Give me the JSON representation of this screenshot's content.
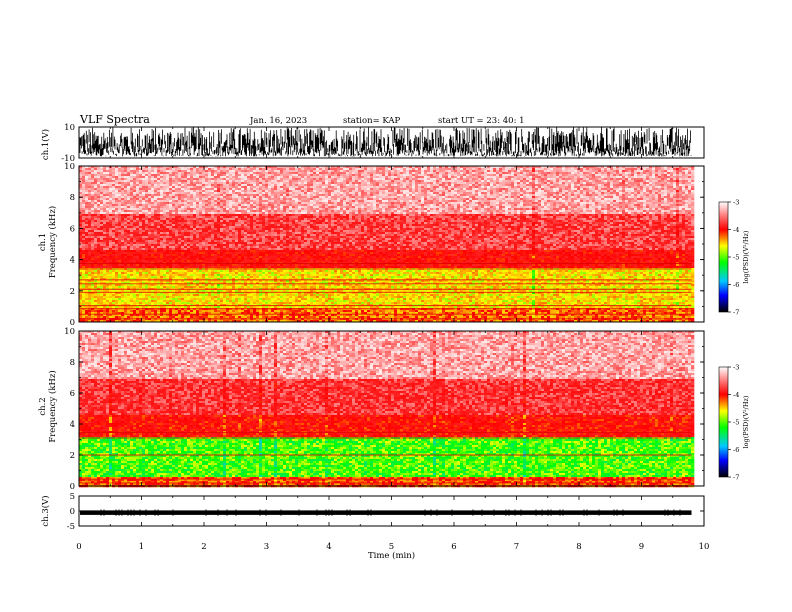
{
  "header": {
    "title": "VLF Spectra",
    "date": "Jan. 16, 2023",
    "station": "station= KAP",
    "start_ut": "start  UT =   23: 40: 1"
  },
  "chart_data": [
    {
      "panel": "ch1-waveform",
      "type": "line",
      "ylabel": "ch.1(V)",
      "ylim": [
        -10,
        10
      ],
      "yticks": [
        10,
        -10
      ],
      "xlim": [
        0,
        10
      ],
      "data_end_min": 9.8,
      "description_of_values": "dense oscillating voltage trace spanning roughly -9 to +10 V",
      "approx_range": [
        -9,
        10
      ]
    },
    {
      "panel": "ch1-spectrogram",
      "type": "heatmap",
      "ylabel": "ch.1\nFrequency (kHz)",
      "ylabel_lines": [
        "ch.1",
        "Frequency (kHz)"
      ],
      "ylim": [
        0,
        10
      ],
      "yticks": [
        0,
        2,
        4,
        6,
        8,
        10
      ],
      "xlim": [
        0,
        10
      ],
      "data_end_min": 9.8,
      "colorbar": {
        "label": "log(PSD)(V²/Hz)",
        "range": [
          -7,
          -3
        ],
        "ticks": [
          -3,
          -4,
          -5,
          -6,
          -7
        ]
      },
      "bands": [
        {
          "f_from": 0,
          "f_to": 0.9,
          "log_psd": -4.4
        },
        {
          "f_from": 0.9,
          "f_to": 3.5,
          "log_psd": -4.7
        },
        {
          "f_from": 3.5,
          "f_to": 4.7,
          "log_psd": -4.05
        },
        {
          "f_from": 4.7,
          "f_to": 7.0,
          "log_psd": -3.7
        },
        {
          "f_from": 7.0,
          "f_to": 10,
          "log_psd": -3.35
        }
      ],
      "lines_khz": [
        0.2,
        0.5,
        0.85,
        1.05,
        1.9,
        2.1,
        2.45,
        2.7,
        3.4,
        3.75
      ]
    },
    {
      "panel": "ch2-spectrogram",
      "type": "heatmap",
      "ylabel": "ch.2\nFrequency (kHz)",
      "ylabel_lines": [
        "ch.2",
        "Frequency (kHz)"
      ],
      "ylim": [
        0,
        10
      ],
      "yticks": [
        0,
        2,
        4,
        6,
        8,
        10
      ],
      "xlim": [
        0,
        10
      ],
      "data_end_min": 9.8,
      "colorbar": {
        "label": "log(PSD)(V²/Hz)",
        "range": [
          -7,
          -3
        ],
        "ticks": [
          -3,
          -4,
          -5,
          -6,
          -7
        ]
      },
      "bands": [
        {
          "f_from": 0,
          "f_to": 0.7,
          "log_psd": -4.3
        },
        {
          "f_from": 0.7,
          "f_to": 3.2,
          "log_psd": -5.1
        },
        {
          "f_from": 3.2,
          "f_to": 4.6,
          "log_psd": -4.1
        },
        {
          "f_from": 4.6,
          "f_to": 7.0,
          "log_psd": -3.75
        },
        {
          "f_from": 7.0,
          "f_to": 10,
          "log_psd": -3.35
        }
      ],
      "lines_khz": [
        0.2,
        0.45,
        2.0,
        3.1,
        3.45
      ]
    },
    {
      "panel": "ch3-waveform",
      "type": "line",
      "ylabel": "ch.3(V)",
      "ylim": [
        -5,
        5
      ],
      "yticks": [
        5,
        0,
        -5
      ],
      "xlim": [
        0,
        10
      ],
      "data_end_min": 9.8,
      "approx_range": [
        -1.3,
        0.2
      ],
      "xlabel": "Time (min)",
      "xticks": [
        0,
        1,
        2,
        3,
        4,
        5,
        6,
        7,
        8,
        9,
        10
      ]
    }
  ],
  "colors": {
    "colormap": [
      "#ffffff",
      "#ff0000",
      "#ffff00",
      "#00ff00",
      "#0000ff",
      "#000000"
    ],
    "trace": "#000000",
    "axis": "#000000"
  }
}
